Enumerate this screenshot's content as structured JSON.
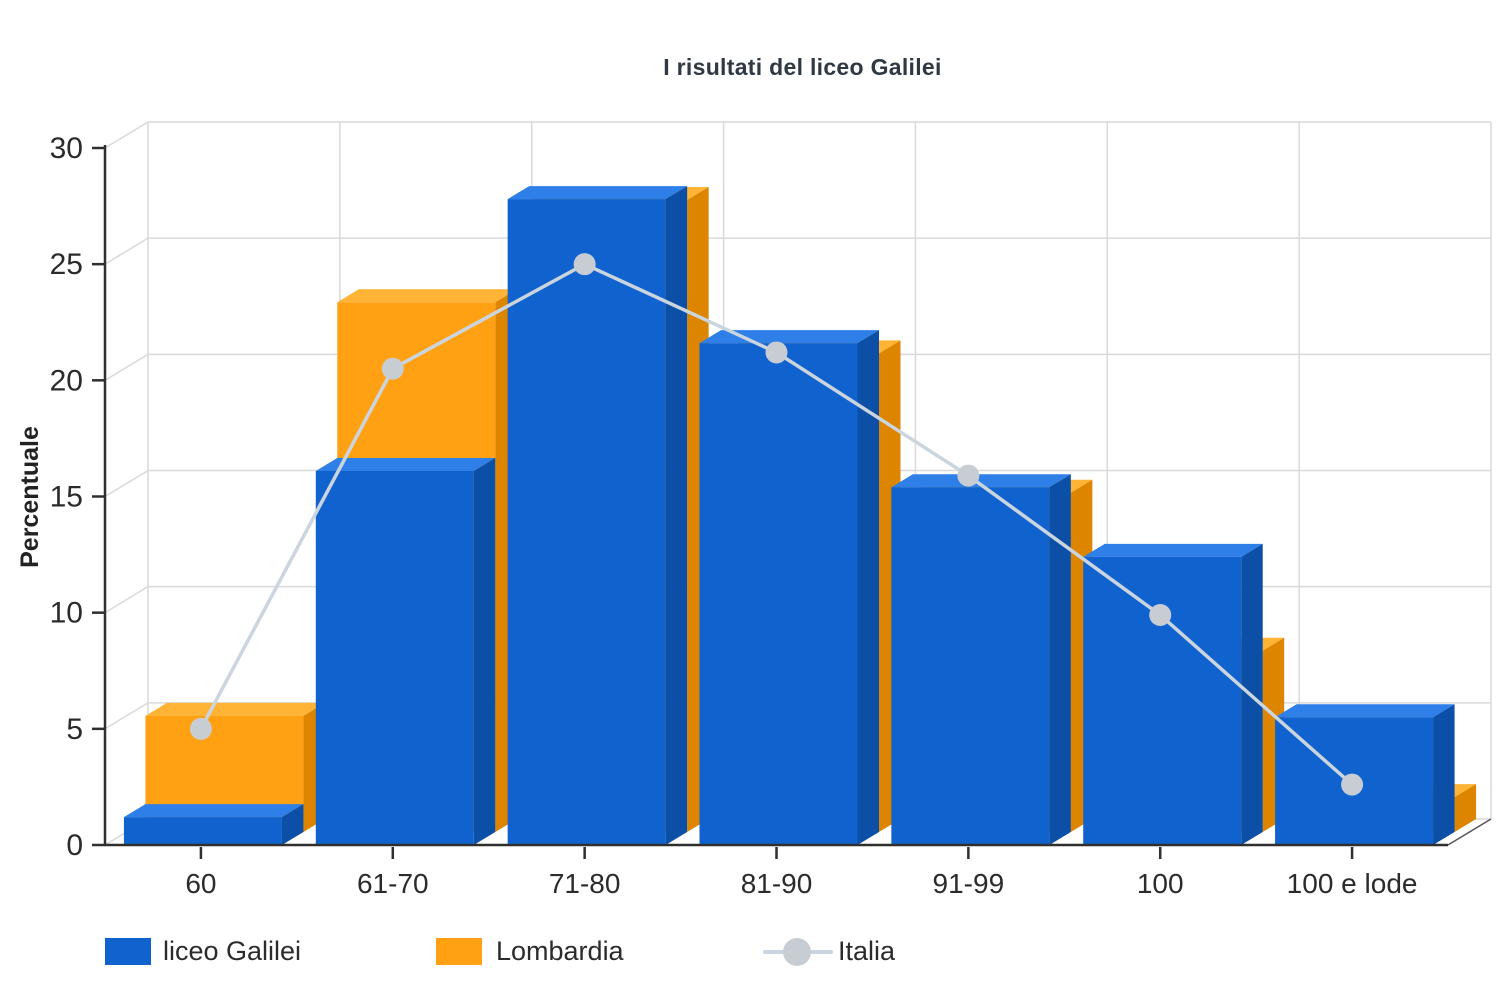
{
  "title": "I risultati del liceo Galilei",
  "chart_data": {
    "type": "bar",
    "subtype": "3d-columns-with-line-overlay",
    "title": "I risultati del liceo Galilei",
    "xlabel": "",
    "ylabel": "Percentuale",
    "categories": [
      "60",
      "61-70",
      "71-80",
      "81-90",
      "91-99",
      "100",
      "100 e lode"
    ],
    "series": [
      {
        "name": "liceo Galilei",
        "type": "bar",
        "color": "#1063CE",
        "color_top": "#2E7FE8",
        "color_side": "#0C4FA6",
        "values": [
          1.2,
          16.1,
          27.8,
          21.6,
          15.4,
          12.4,
          5.5
        ]
      },
      {
        "name": "Lombardia",
        "type": "bar",
        "color": "#FFA113",
        "color_top": "#FFB435",
        "color_side": "#DE8500",
        "values": [
          5.0,
          22.8,
          27.2,
          20.6,
          14.6,
          7.8,
          1.5
        ]
      },
      {
        "name": "Italia",
        "type": "line",
        "color": "#CBD5DF",
        "marker_color": "#C8CDD4",
        "values": [
          5.0,
          20.5,
          25.0,
          21.2,
          15.9,
          9.9,
          2.6
        ]
      }
    ],
    "ylim": [
      0,
      30
    ],
    "yticks": [
      0,
      5,
      10,
      15,
      20,
      25,
      30
    ],
    "grid": true,
    "legend_position": "bottom"
  },
  "style_colors": {
    "grid": "#D9D9D9",
    "axis": "#2f2f2f",
    "tick_text": "#2b2b2b",
    "background": "#ffffff"
  }
}
